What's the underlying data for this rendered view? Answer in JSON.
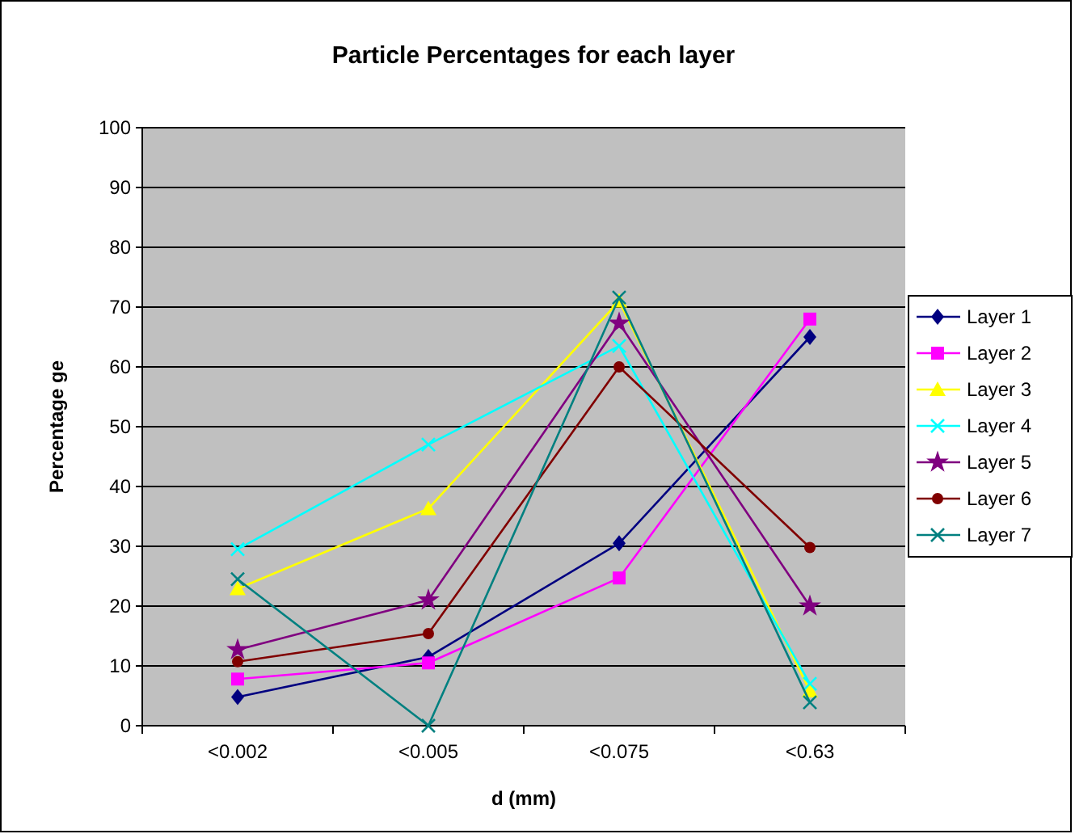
{
  "chart_data": {
    "type": "line",
    "title": "Particle Percentages for each layer",
    "xlabel": "d (mm)",
    "ylabel": "Percentage ge",
    "categories": [
      "<0.002",
      "<0.005",
      "<0.075",
      "<0.63"
    ],
    "ylim": [
      0,
      100
    ],
    "yticks": [
      0,
      10,
      20,
      30,
      40,
      50,
      60,
      70,
      80,
      90,
      100
    ],
    "grid": "y",
    "legend": "right",
    "series": [
      {
        "name": "Layer 1",
        "color": "#000080",
        "marker": "diamond",
        "values": [
          4.8,
          11.5,
          30.5,
          65
        ]
      },
      {
        "name": "Layer 2",
        "color": "#ff00ff",
        "marker": "square",
        "values": [
          7.8,
          10.5,
          24.7,
          68
        ]
      },
      {
        "name": "Layer 3",
        "color": "#ffff00",
        "marker": "triangle",
        "values": [
          22.9,
          36.3,
          71,
          5.8
        ]
      },
      {
        "name": "Layer 4",
        "color": "#00ffff",
        "marker": "cross",
        "values": [
          29.5,
          47,
          63.5,
          7
        ]
      },
      {
        "name": "Layer 5",
        "color": "#800080",
        "marker": "star",
        "values": [
          12.7,
          21,
          67.3,
          20
        ]
      },
      {
        "name": "Layer 6",
        "color": "#800000",
        "marker": "circle",
        "values": [
          10.7,
          15.4,
          60,
          29.8
        ]
      },
      {
        "name": "Layer 7",
        "color": "#008080",
        "marker": "cross",
        "values": [
          24.5,
          0,
          71.6,
          3.9
        ]
      }
    ]
  }
}
